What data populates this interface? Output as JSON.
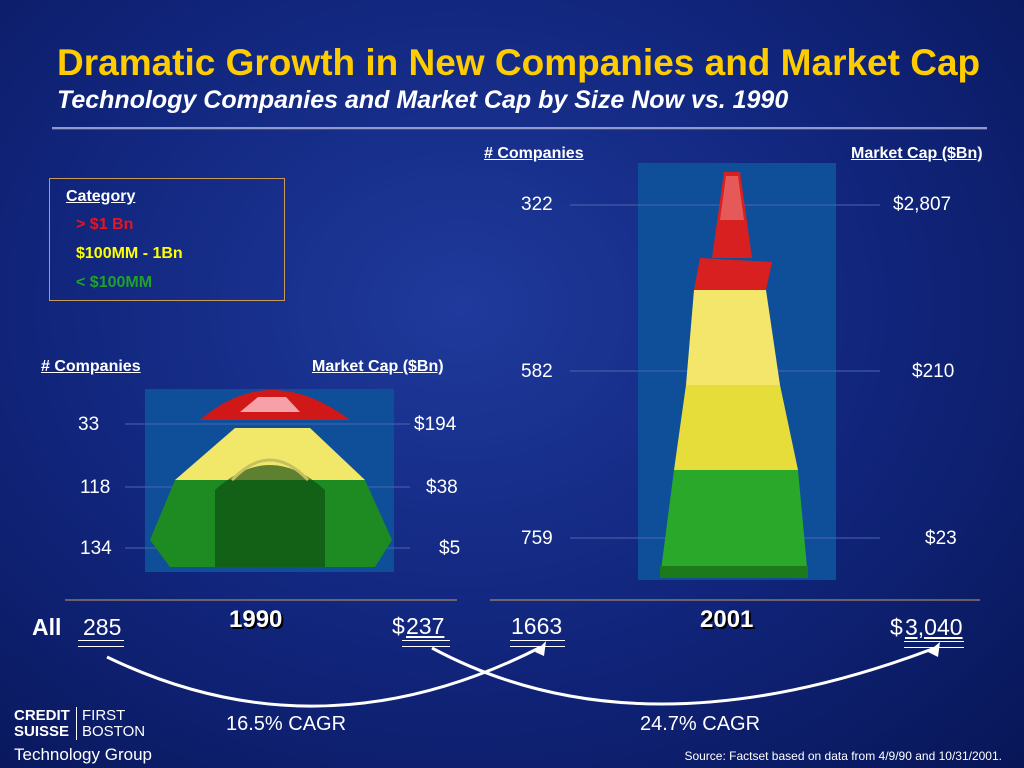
{
  "title": "Dramatic Growth in New Companies and Market Cap",
  "subtitle": "Technology Companies and Market Cap by Size Now vs. 1990",
  "legend": {
    "heading": "Category",
    "items": [
      {
        "label": "> $1 Bn",
        "color": "#e8141e"
      },
      {
        "label": "$100MM - 1Bn",
        "color": "#ffff00"
      },
      {
        "label": "< $100MM",
        "color": "#1fa12a"
      }
    ]
  },
  "left": {
    "companies_header": "# Companies",
    "marketcap_header": "Market Cap ($Bn)",
    "companies": [
      "33",
      "118",
      "134"
    ],
    "marketcap": [
      "$194",
      "$38",
      "$5"
    ],
    "year": "1990",
    "all_label": "All",
    "total_companies": "285",
    "total_cap_prefix": "$",
    "total_cap": "237"
  },
  "right": {
    "companies_header": "# Companies",
    "marketcap_header": "Market Cap ($Bn)",
    "companies": [
      "322",
      "582",
      "759"
    ],
    "marketcap": [
      "$2,807",
      "$210",
      "$23"
    ],
    "year": "2001",
    "total_companies": "1663",
    "total_cap_prefix": "$",
    "total_cap": "3,040"
  },
  "cagr": {
    "left": "16.5% CAGR",
    "right": "24.7% CAGR"
  },
  "source": "Source: Factset based on data from 4/9/90 and 10/31/2001.",
  "logo": {
    "line1a": "CREDIT",
    "line1b": "SUISSE",
    "line2a": "FIRST",
    "line2b": "BOSTON",
    "line3": "Technology Group"
  }
}
